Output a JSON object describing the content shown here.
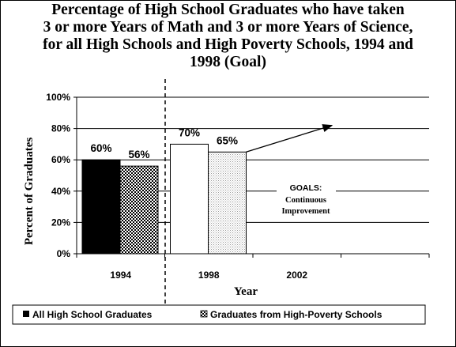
{
  "chart_data": {
    "type": "bar",
    "title_lines": [
      "Percentage of High School Graduates who have taken",
      "3 or more Years of Math and 3 or more Years of Science,",
      "for all High Schools and High Poverty Schools, 1994 and",
      "1998 (Goal)"
    ],
    "xlabel": "Year",
    "ylabel": "Percent of Graduates",
    "categories": [
      "1994",
      "1998",
      "2002"
    ],
    "ylim": [
      0,
      100
    ],
    "yticks": [
      "0%",
      "20%",
      "40%",
      "60%",
      "80%",
      "100%"
    ],
    "grid": true,
    "series": [
      {
        "name": "All High School Graduates",
        "values": [
          60,
          70,
          null
        ],
        "labels": [
          "60%",
          "70%",
          ""
        ],
        "color": "#000000"
      },
      {
        "name": "Graduates from High-Poverty Schools",
        "values": [
          56,
          65,
          null
        ],
        "labels": [
          "56%",
          "65%",
          ""
        ],
        "color": "#888888"
      }
    ],
    "annotation": {
      "line1": "GOALS:",
      "line2": "Continuous",
      "line3": "Improvement"
    },
    "legend_position": "bottom"
  }
}
